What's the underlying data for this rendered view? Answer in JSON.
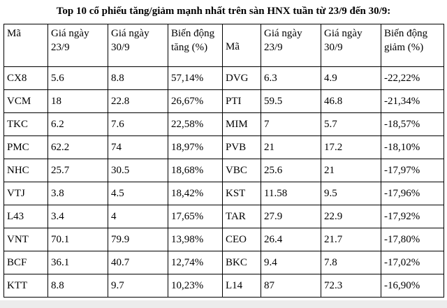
{
  "title": "Top 10 cổ phiếu tăng/giảm mạnh nhất trên sàn HNX tuần từ 23/9 đến 30/9:",
  "table": {
    "headers": [
      "Mã",
      "Giá ngày 23/9",
      "Giá ngày 30/9",
      "Biến động tăng (%)",
      "Mã",
      "Giá ngày 23/9",
      "Giá ngày 30/9",
      "Biến động giảm (%)"
    ],
    "rows": [
      [
        "CX8",
        "5.6",
        "8.8",
        "57,14%",
        "DVG",
        "6.3",
        "4.9",
        "-22,22%"
      ],
      [
        "VCM",
        "18",
        "22.8",
        "26,67%",
        "PTI",
        "59.5",
        "46.8",
        "-21,34%"
      ],
      [
        "TKC",
        "6.2",
        "7.6",
        "22,58%",
        "MIM",
        "7",
        "5.7",
        "-18,57%"
      ],
      [
        "PMC",
        "62.2",
        "74",
        "18,97%",
        "PVB",
        "21",
        "17.2",
        "-18,10%"
      ],
      [
        "NHC",
        "25.7",
        "30.5",
        "18,68%",
        "VBC",
        "25.6",
        "21",
        "-17,97%"
      ],
      [
        "VTJ",
        "3.8",
        "4.5",
        "18,42%",
        "KST",
        "11.58",
        "9.5",
        "-17,96%"
      ],
      [
        "L43",
        "3.4",
        "4",
        "17,65%",
        "TAR",
        "27.9",
        "22.9",
        "-17,92%"
      ],
      [
        "VNT",
        "70.1",
        "79.9",
        "13,98%",
        "CEO",
        "26.4",
        "21.7",
        "-17,80%"
      ],
      [
        "BCF",
        "36.1",
        "40.7",
        "12,74%",
        "BKC",
        "9.4",
        "7.8",
        "-17,02%"
      ],
      [
        "KTT",
        "8.8",
        "9.7",
        "10,23%",
        "L14",
        "87",
        "72.3",
        "-16,90%"
      ]
    ]
  }
}
